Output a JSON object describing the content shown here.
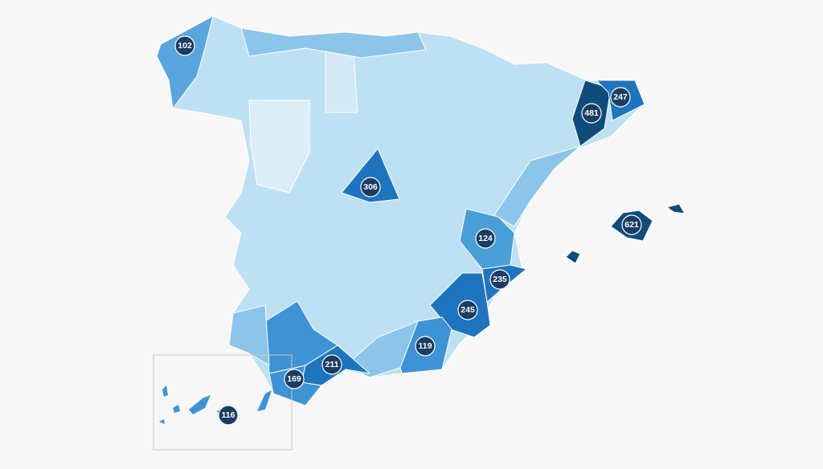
{
  "markers": [
    102,
    306,
    247,
    481,
    621,
    124,
    235,
    245,
    119,
    211,
    169,
    116
  ]
}
